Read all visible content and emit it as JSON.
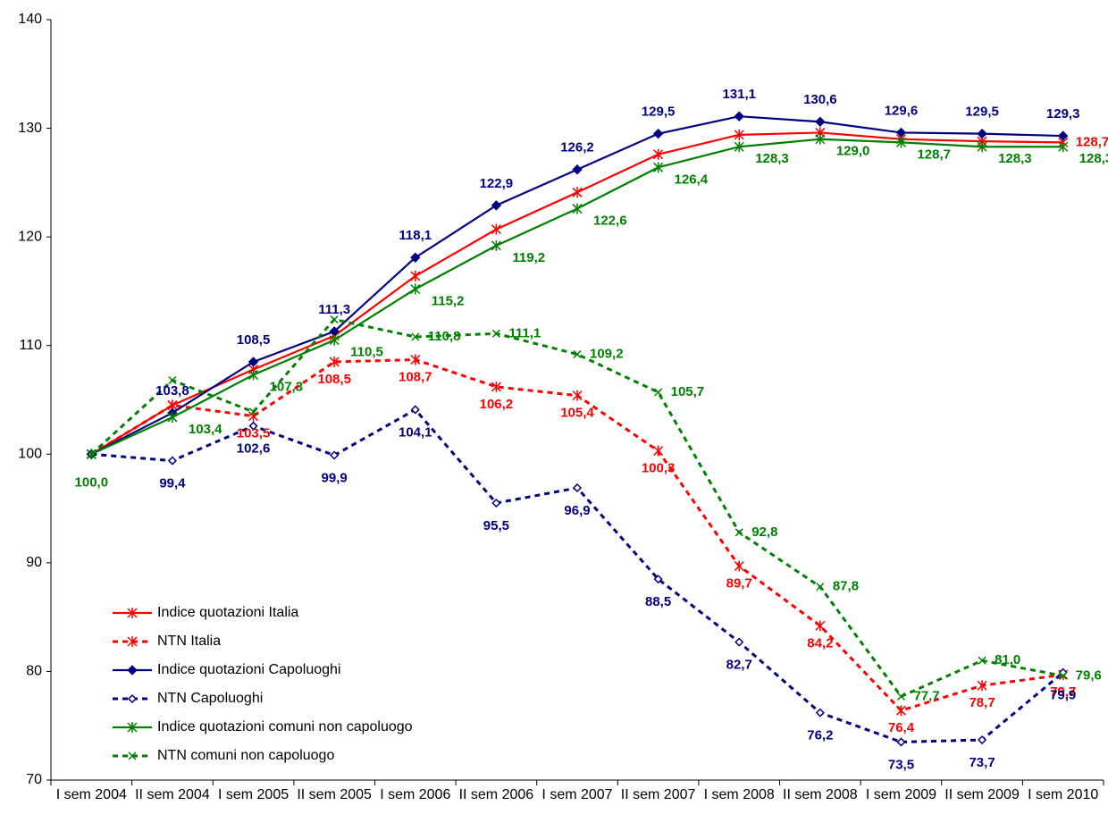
{
  "chart_data": {
    "type": "line",
    "categories": [
      "I sem 2004",
      "II sem 2004",
      "I sem 2005",
      "II sem 2005",
      "I sem 2006",
      "II sem 2006",
      "I sem 2007",
      "II sem 2007",
      "I sem 2008",
      "II sem 2008",
      "I sem 2009",
      "II sem 2009",
      "I sem 2010"
    ],
    "series": [
      {
        "name": "Indice quotazioni Italia",
        "color": "#ff0000",
        "line_style": "solid",
        "marker": "asterisk",
        "values": [
          100,
          104.5,
          107.8,
          110.9,
          116.4,
          120.7,
          124.1,
          127.6,
          129.4,
          129.6,
          129.0,
          128.8,
          128.7
        ],
        "value_labels": [
          null,
          null,
          null,
          null,
          null,
          null,
          null,
          null,
          null,
          null,
          null,
          null,
          "128,7"
        ]
      },
      {
        "name": "NTN Italia",
        "color": "#ff0000",
        "line_style": "dashed",
        "marker": "asterisk",
        "values": [
          100,
          104.5,
          103.5,
          108.5,
          108.7,
          106.2,
          105.4,
          100.3,
          89.7,
          84.2,
          76.4,
          78.7,
          79.7
        ],
        "value_labels": [
          null,
          null,
          "103,5",
          "108,5",
          "108,7",
          "106,2",
          "105,4",
          "100,3",
          "89,7",
          "84,2",
          "76,4",
          "78,7",
          "79,7"
        ]
      },
      {
        "name": "Indice quotazioni Capoluoghi",
        "color": "#000080",
        "line_style": "solid",
        "marker": "diamond",
        "values": [
          100,
          103.8,
          108.5,
          111.3,
          118.1,
          122.9,
          126.2,
          129.5,
          131.1,
          130.6,
          129.6,
          129.5,
          129.3
        ],
        "value_labels": [
          null,
          "103,8",
          "108,5",
          "111,3",
          "118,1",
          "122,9",
          "126,2",
          "129,5",
          "131,1",
          "130,6",
          "129,6",
          "129,5",
          "129,3"
        ]
      },
      {
        "name": "NTN Capoluoghi",
        "color": "#000080",
        "line_style": "dashed",
        "marker": "hollow-diamond",
        "values": [
          100,
          99.4,
          102.6,
          99.9,
          104.1,
          95.5,
          96.9,
          88.5,
          82.7,
          76.2,
          73.5,
          73.7,
          79.9
        ],
        "value_labels": [
          null,
          "99,4",
          "102,6",
          "99,9",
          "104,1",
          "95,5",
          "96,9",
          "88,5",
          "82,7",
          "76,2",
          "73,5",
          "73,7",
          "79,9"
        ]
      },
      {
        "name": "Indice quotazioni comuni non capoluogo",
        "color": "#008000",
        "line_style": "solid",
        "marker": "asterisk",
        "values": [
          100,
          103.4,
          107.3,
          110.5,
          115.2,
          119.2,
          122.6,
          126.4,
          128.3,
          129.0,
          128.7,
          128.3,
          128.3
        ],
        "value_labels": [
          "100,0",
          "103,4",
          "107,3",
          "110,5",
          "115,2",
          "119,2",
          "122,6",
          "126,4",
          "128,3",
          "129,0",
          "128,7",
          "128,3",
          "128,3"
        ]
      },
      {
        "name": "NTN comuni non capoluogo",
        "color": "#008000",
        "line_style": "dashed",
        "marker": "cross",
        "values": [
          100,
          106.8,
          103.9,
          112.4,
          110.8,
          111.1,
          109.2,
          105.7,
          92.8,
          87.8,
          77.7,
          81.0,
          79.6
        ],
        "value_labels": [
          null,
          null,
          null,
          null,
          "110,8",
          "111,1",
          "109,2",
          "105,7",
          "92,8",
          "87,8",
          "77,7",
          "81,0",
          "79,6"
        ]
      }
    ],
    "ylim": [
      70,
      140
    ],
    "yticks": [
      70,
      80,
      90,
      100,
      110,
      120,
      130,
      140
    ],
    "grid": false,
    "legend": "lower left"
  }
}
